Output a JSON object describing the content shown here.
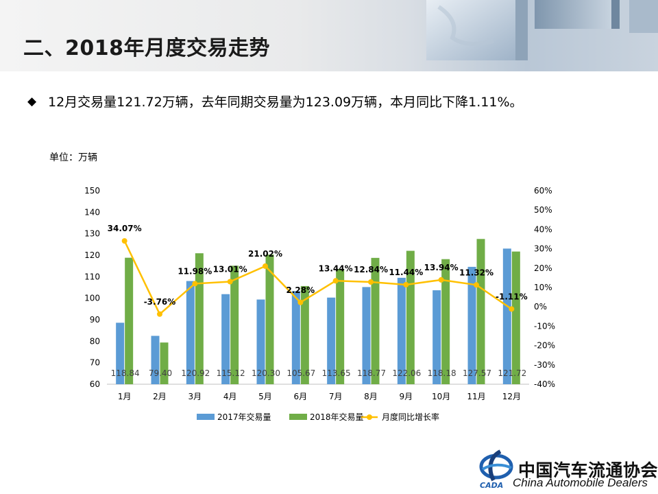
{
  "header": {
    "title": "二、2018年月度交易走势"
  },
  "summary": {
    "bullet": "◆",
    "text": "12月交易量121.72万辆，去年同期交易量为123.09万辆，本月同比下降1.11%。"
  },
  "unit_label": "单位：万辆",
  "logo": {
    "cn": "中国汽车流通协会",
    "en": "China Automobile Dealers",
    "mark": "CADA"
  },
  "colors": {
    "bar2017": "#5b9bd5",
    "bar2018": "#70ad47",
    "line": "#ffc000"
  },
  "chart_data": {
    "type": "bar",
    "categories": [
      "1月",
      "2月",
      "3月",
      "4月",
      "5月",
      "6月",
      "7月",
      "8月",
      "9月",
      "10月",
      "11月",
      "12月"
    ],
    "series": [
      {
        "name": "2017年交易量",
        "kind": "bar",
        "axis": "left",
        "values": [
          88.6,
          82.5,
          108.0,
          101.9,
          99.4,
          103.3,
          100.3,
          105.2,
          109.5,
          103.7,
          114.6,
          123.09
        ]
      },
      {
        "name": "2018年交易量",
        "kind": "bar",
        "axis": "left",
        "values": [
          118.84,
          79.4,
          120.92,
          115.12,
          120.3,
          105.67,
          113.65,
          118.77,
          122.06,
          118.18,
          127.57,
          121.72
        ]
      },
      {
        "name": "月度同比增长率",
        "kind": "line",
        "axis": "right",
        "values": [
          34.07,
          -3.76,
          11.98,
          13.01,
          21.02,
          2.28,
          13.44,
          12.84,
          11.44,
          13.94,
          11.32,
          -1.11
        ]
      }
    ],
    "bar_labels": [
      "118.84",
      "79.40",
      "120.92",
      "115.12",
      "120.30",
      "105.67",
      "113.65",
      "118.77",
      "122.06",
      "118.18",
      "127.57",
      "121.72"
    ],
    "line_labels": [
      "34.07%",
      "-3.76%",
      "11.98%",
      "13.01%",
      "21.02%",
      "2.28%",
      "13.44%",
      "12.84%",
      "11.44%",
      "13.94%",
      "11.32%",
      "-1.11%"
    ],
    "y_left": {
      "min": 60,
      "max": 150,
      "ticks": [
        "60",
        "70",
        "80",
        "90",
        "100",
        "110",
        "120",
        "130",
        "140",
        "150"
      ]
    },
    "y_right": {
      "min": -40,
      "max": 60,
      "ticks": [
        "-40%",
        "-30%",
        "-20%",
        "-10%",
        "0%",
        "10%",
        "20%",
        "30%",
        "40%",
        "50%",
        "60%"
      ]
    },
    "grid": false,
    "legend": {
      "position": "bottom",
      "labels": [
        "2017年交易量",
        "2018年交易量",
        "月度同比增长率"
      ]
    }
  }
}
